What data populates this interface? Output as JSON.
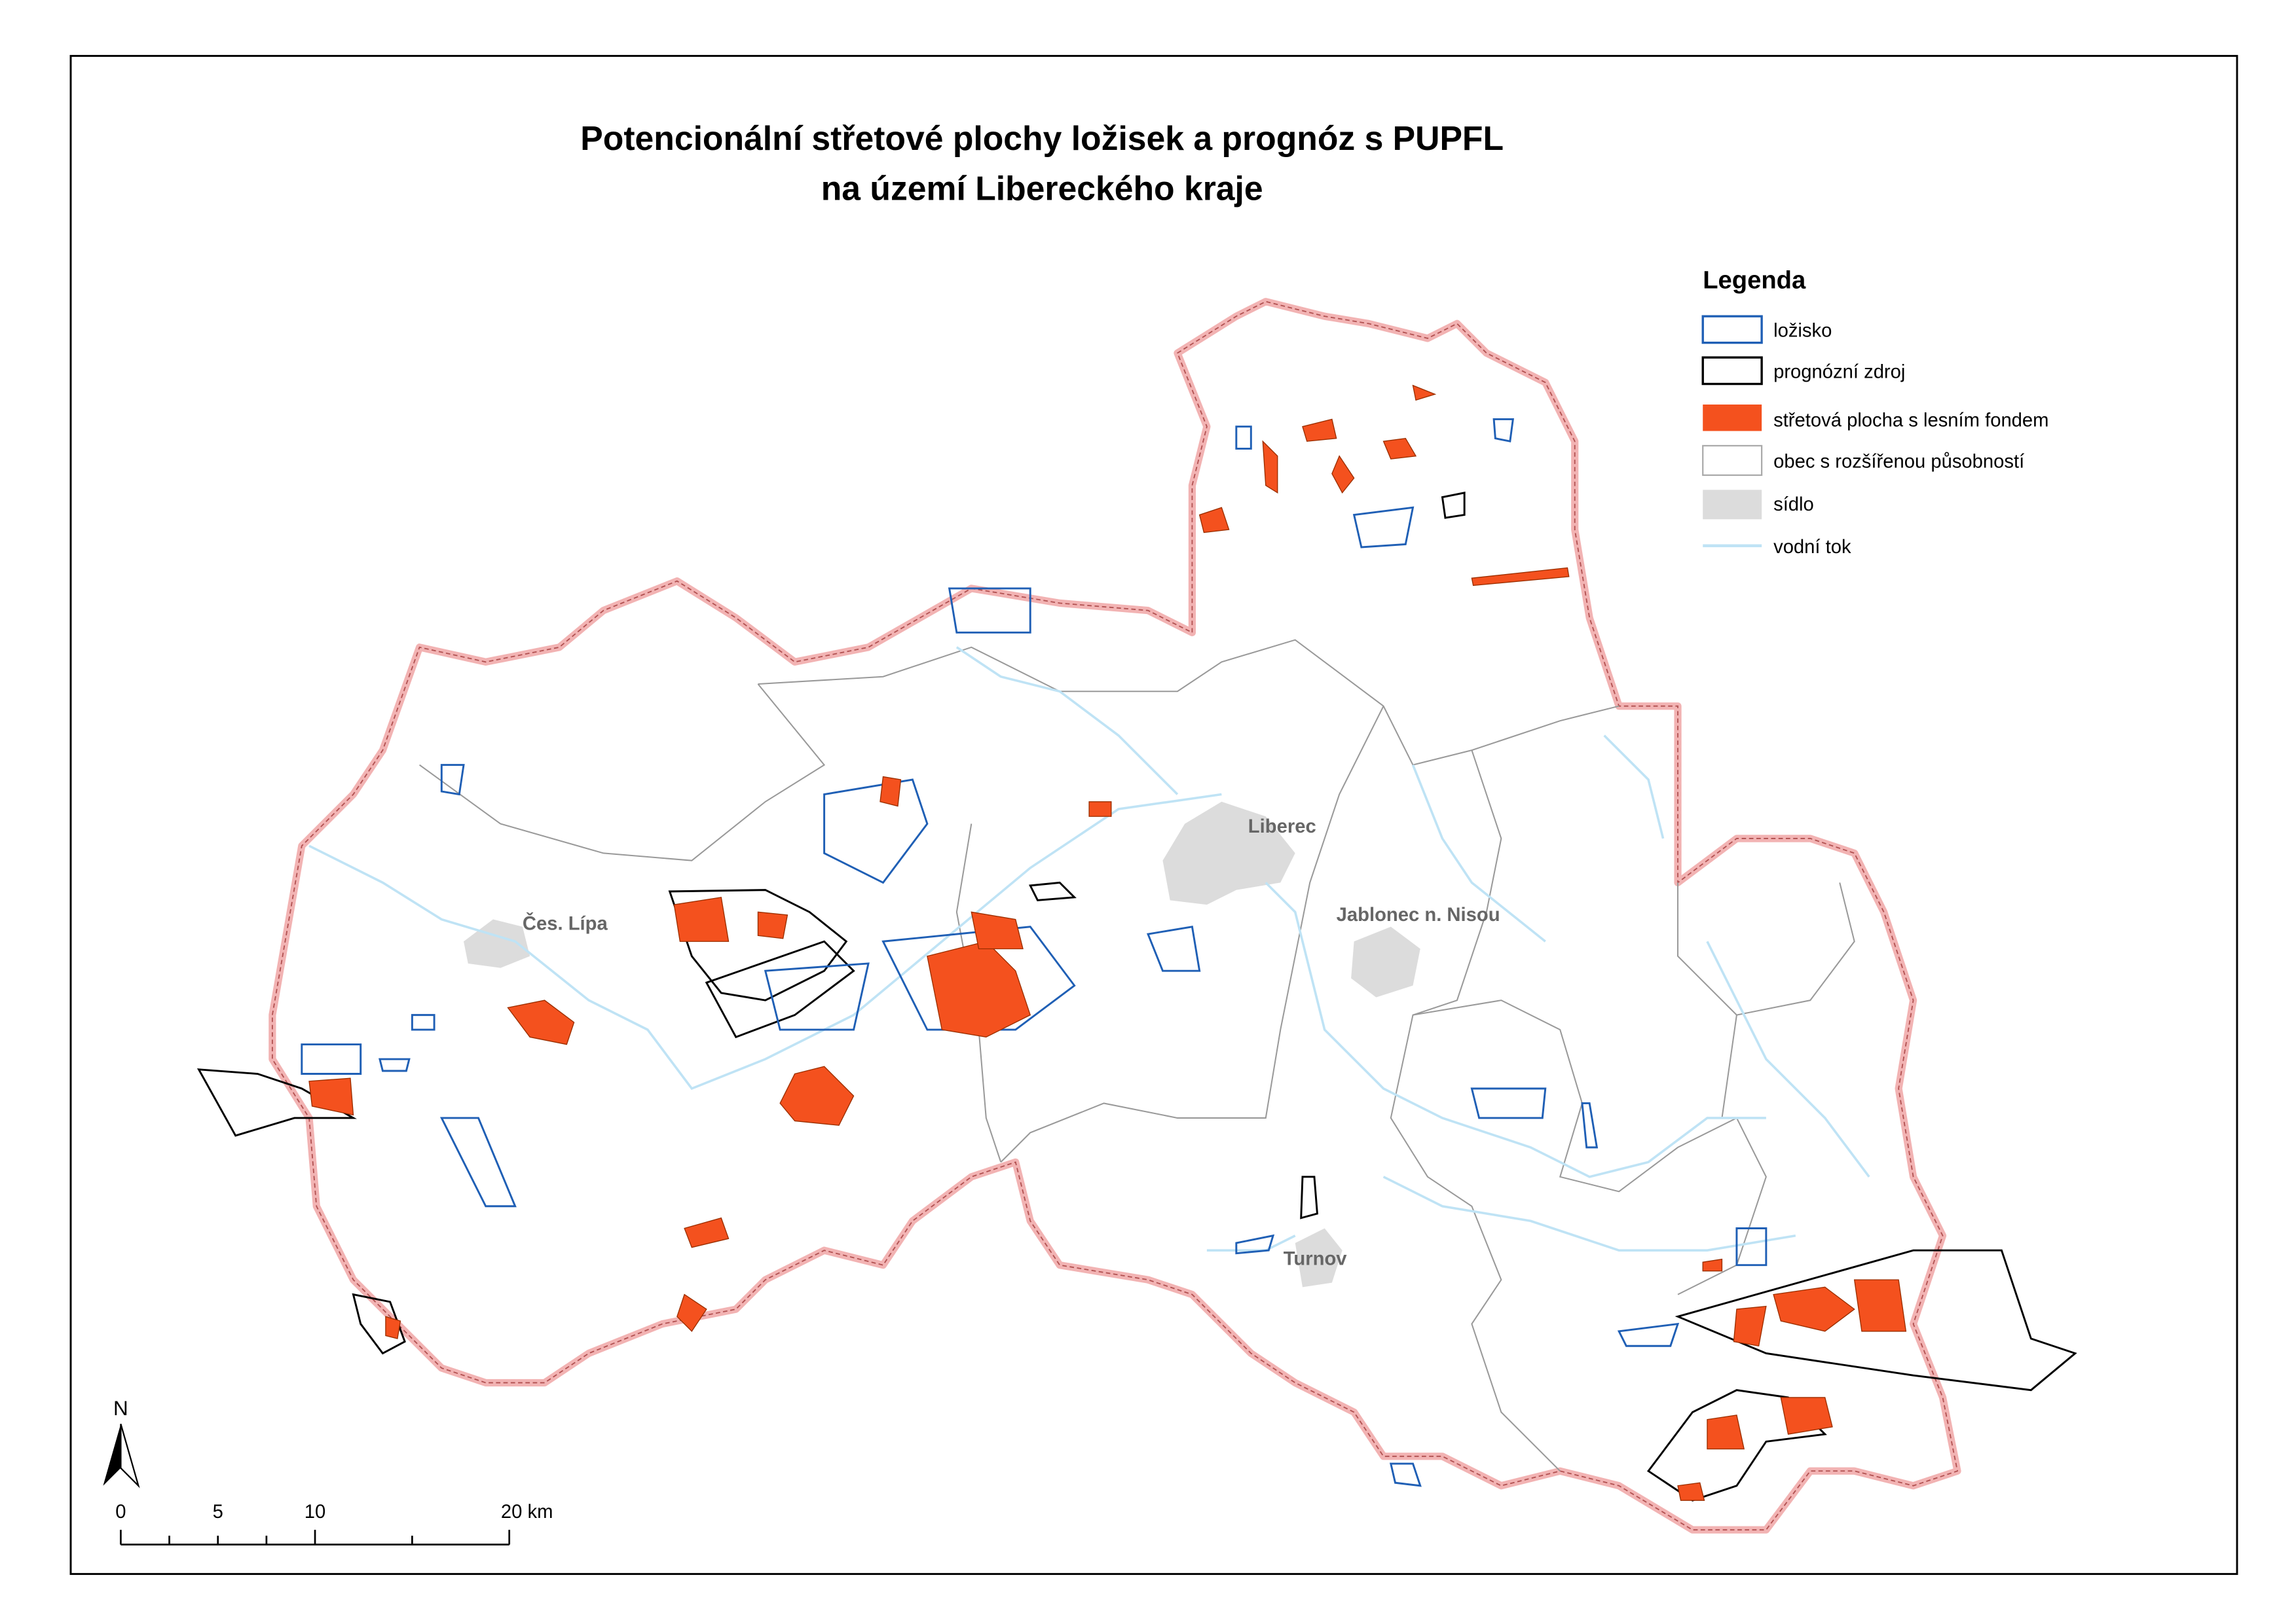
{
  "map": {
    "title": [
      "Potencionální střetové plochy ložisek a prognóz s  PUPFL",
      "na území Libereckého kraje"
    ],
    "legend": {
      "title": "Legenda",
      "items": [
        "ložisko",
        "prognózní zdroj",
        "střetová plocha s lesním fondem",
        "obec s rozšířenou působností",
        "sídlo",
        "vodní tok"
      ]
    },
    "places": [
      "Liberec",
      "Jablonec n. Nisou",
      "Čes. Lípa",
      "Turnov"
    ],
    "north": "N",
    "scale": [
      "0",
      "5",
      "10",
      "20 km"
    ]
  }
}
